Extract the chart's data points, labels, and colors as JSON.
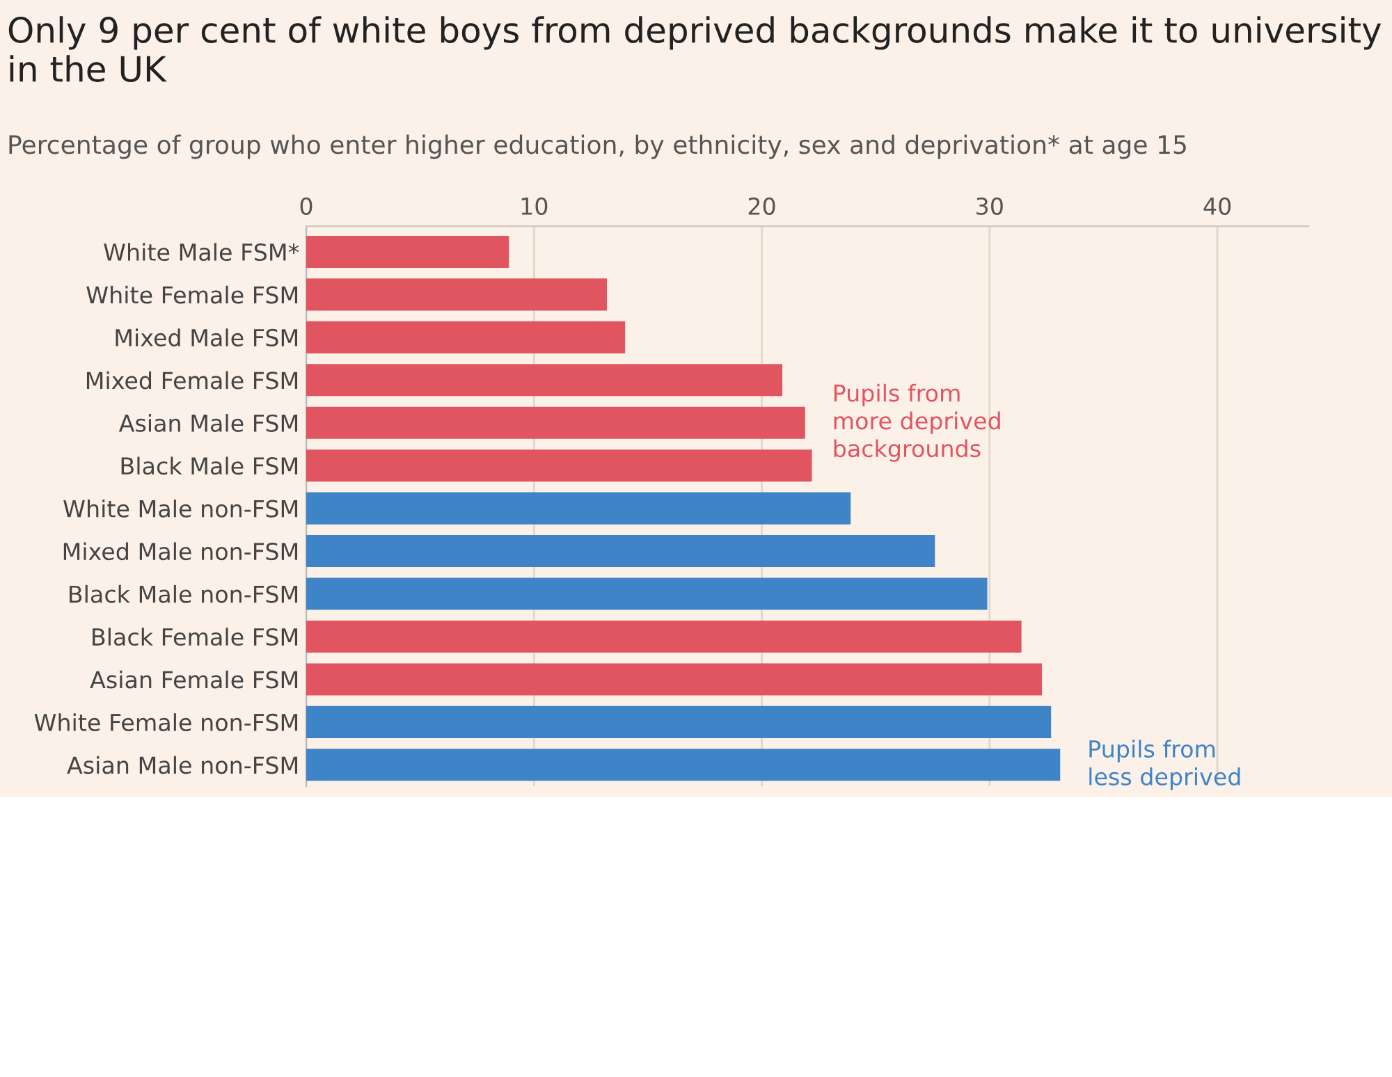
{
  "chart_data": {
    "type": "bar",
    "orientation": "horizontal",
    "title": "Only 9 per cent of white boys from deprived backgrounds make it to university in the UK",
    "subtitle": "Percentage of group who enter higher education, by ethnicity, sex and deprivation* at age 15",
    "categories": [
      "White Male FSM*",
      "White Female FSM",
      "Mixed Male FSM",
      "Mixed Female FSM",
      "Asian Male FSM",
      "Black Male FSM",
      "White Male non-FSM",
      "Mixed Male non-FSM",
      "Black Male non-FSM",
      "Black Female FSM",
      "Asian Female FSM",
      "White Female non-FSM",
      "Asian Male non-FSM"
    ],
    "values": [
      8.9,
      13.2,
      14.0,
      20.9,
      21.9,
      22.2,
      23.9,
      27.6,
      29.9,
      31.4,
      32.3,
      32.7,
      33.1
    ],
    "colors": [
      "#e15560",
      "#e15560",
      "#e15560",
      "#e15560",
      "#e15560",
      "#e15560",
      "#3f84c6",
      "#3f84c6",
      "#3f84c6",
      "#e15560",
      "#e15560",
      "#3f84c6",
      "#3f84c6"
    ],
    "xlim": [
      0,
      44
    ],
    "xticks": [
      0,
      10,
      20,
      30,
      40
    ],
    "grid": "x",
    "annotations": [
      {
        "text": "Pupils from\nmore deprived\nbackgrounds",
        "x": 21.9,
        "y": "Asian Male FSM"
      },
      {
        "text": "Pupils from\nless deprived",
        "x": 33.1,
        "y": "Asian Male non-FSM"
      }
    ]
  }
}
